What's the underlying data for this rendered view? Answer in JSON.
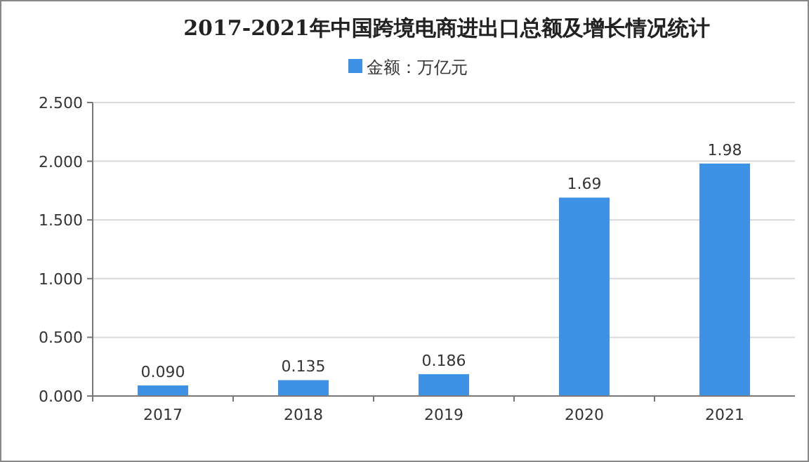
{
  "chart_data": {
    "type": "bar",
    "title": "2017-2021年中国跨境电商进出口总额及增长情况统计",
    "categories": [
      "2017",
      "2018",
      "2019",
      "2020",
      "2021"
    ],
    "series": [
      {
        "name": "金额：万亿元",
        "color": "#3d92e6",
        "values": [
          0.09,
          0.135,
          0.186,
          1.69,
          1.98
        ],
        "value_labels": [
          "0.090",
          "0.135",
          "0.186",
          "1.69",
          "1.98"
        ]
      }
    ],
    "ylim": [
      0,
      2.5
    ],
    "yticks": [
      {
        "value": 0,
        "label": "0.000"
      },
      {
        "value": 0.5,
        "label": "0.500"
      },
      {
        "value": 1,
        "label": "1.000"
      },
      {
        "value": 1.5,
        "label": "1.500"
      },
      {
        "value": 2,
        "label": "2.000"
      },
      {
        "value": 2.5,
        "label": "2.500"
      }
    ],
    "grid": "y",
    "legend": "top"
  }
}
